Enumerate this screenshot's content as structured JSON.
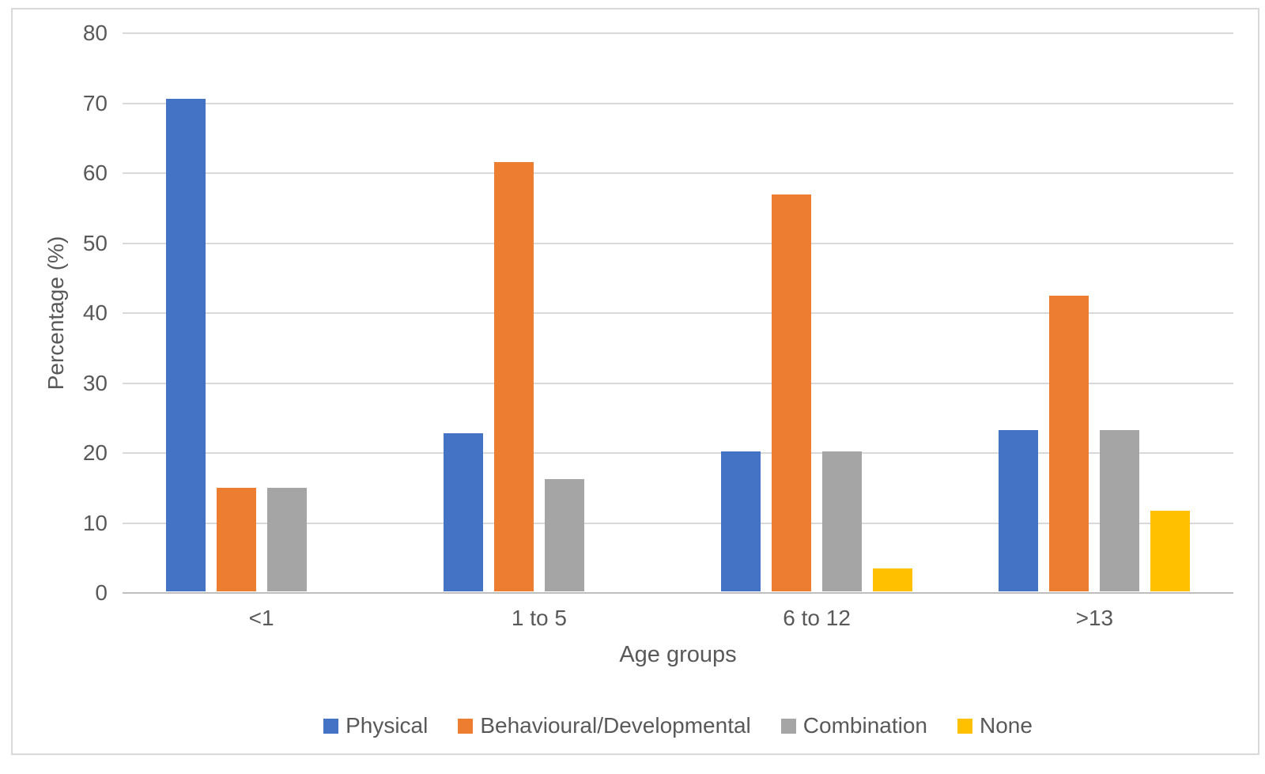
{
  "figure": {
    "background": "#FFFFFF",
    "border_color": "#D9D9D9",
    "text_color": "#595959",
    "gridline_color": "#D9D9D9",
    "axis_line_color": "#BFBFBF"
  },
  "chart_data": {
    "type": "bar",
    "title": "",
    "categories": [
      "<1",
      "1 to 5",
      "6 to 12",
      ">13"
    ],
    "series": [
      {
        "name": "Physical",
        "color": "#4472C4",
        "values": [
          70.4,
          22.6,
          20.0,
          23.1
        ]
      },
      {
        "name": "Behavioural/Developmental",
        "color": "#ED7D31",
        "values": [
          14.8,
          61.3,
          56.7,
          42.3
        ]
      },
      {
        "name": "Combination",
        "color": "#A5A5A5",
        "values": [
          14.8,
          16.1,
          20.0,
          23.1
        ]
      },
      {
        "name": "None",
        "color": "#FFC000",
        "values": [
          0,
          0,
          3.3,
          11.5
        ]
      }
    ],
    "xlabel": "Age groups",
    "ylabel": "Percentage (%)",
    "ylim": [
      0,
      80
    ],
    "yticks": [
      0,
      10,
      20,
      30,
      40,
      50,
      60,
      70,
      80
    ],
    "grid": true,
    "legend_position": "bottom"
  }
}
